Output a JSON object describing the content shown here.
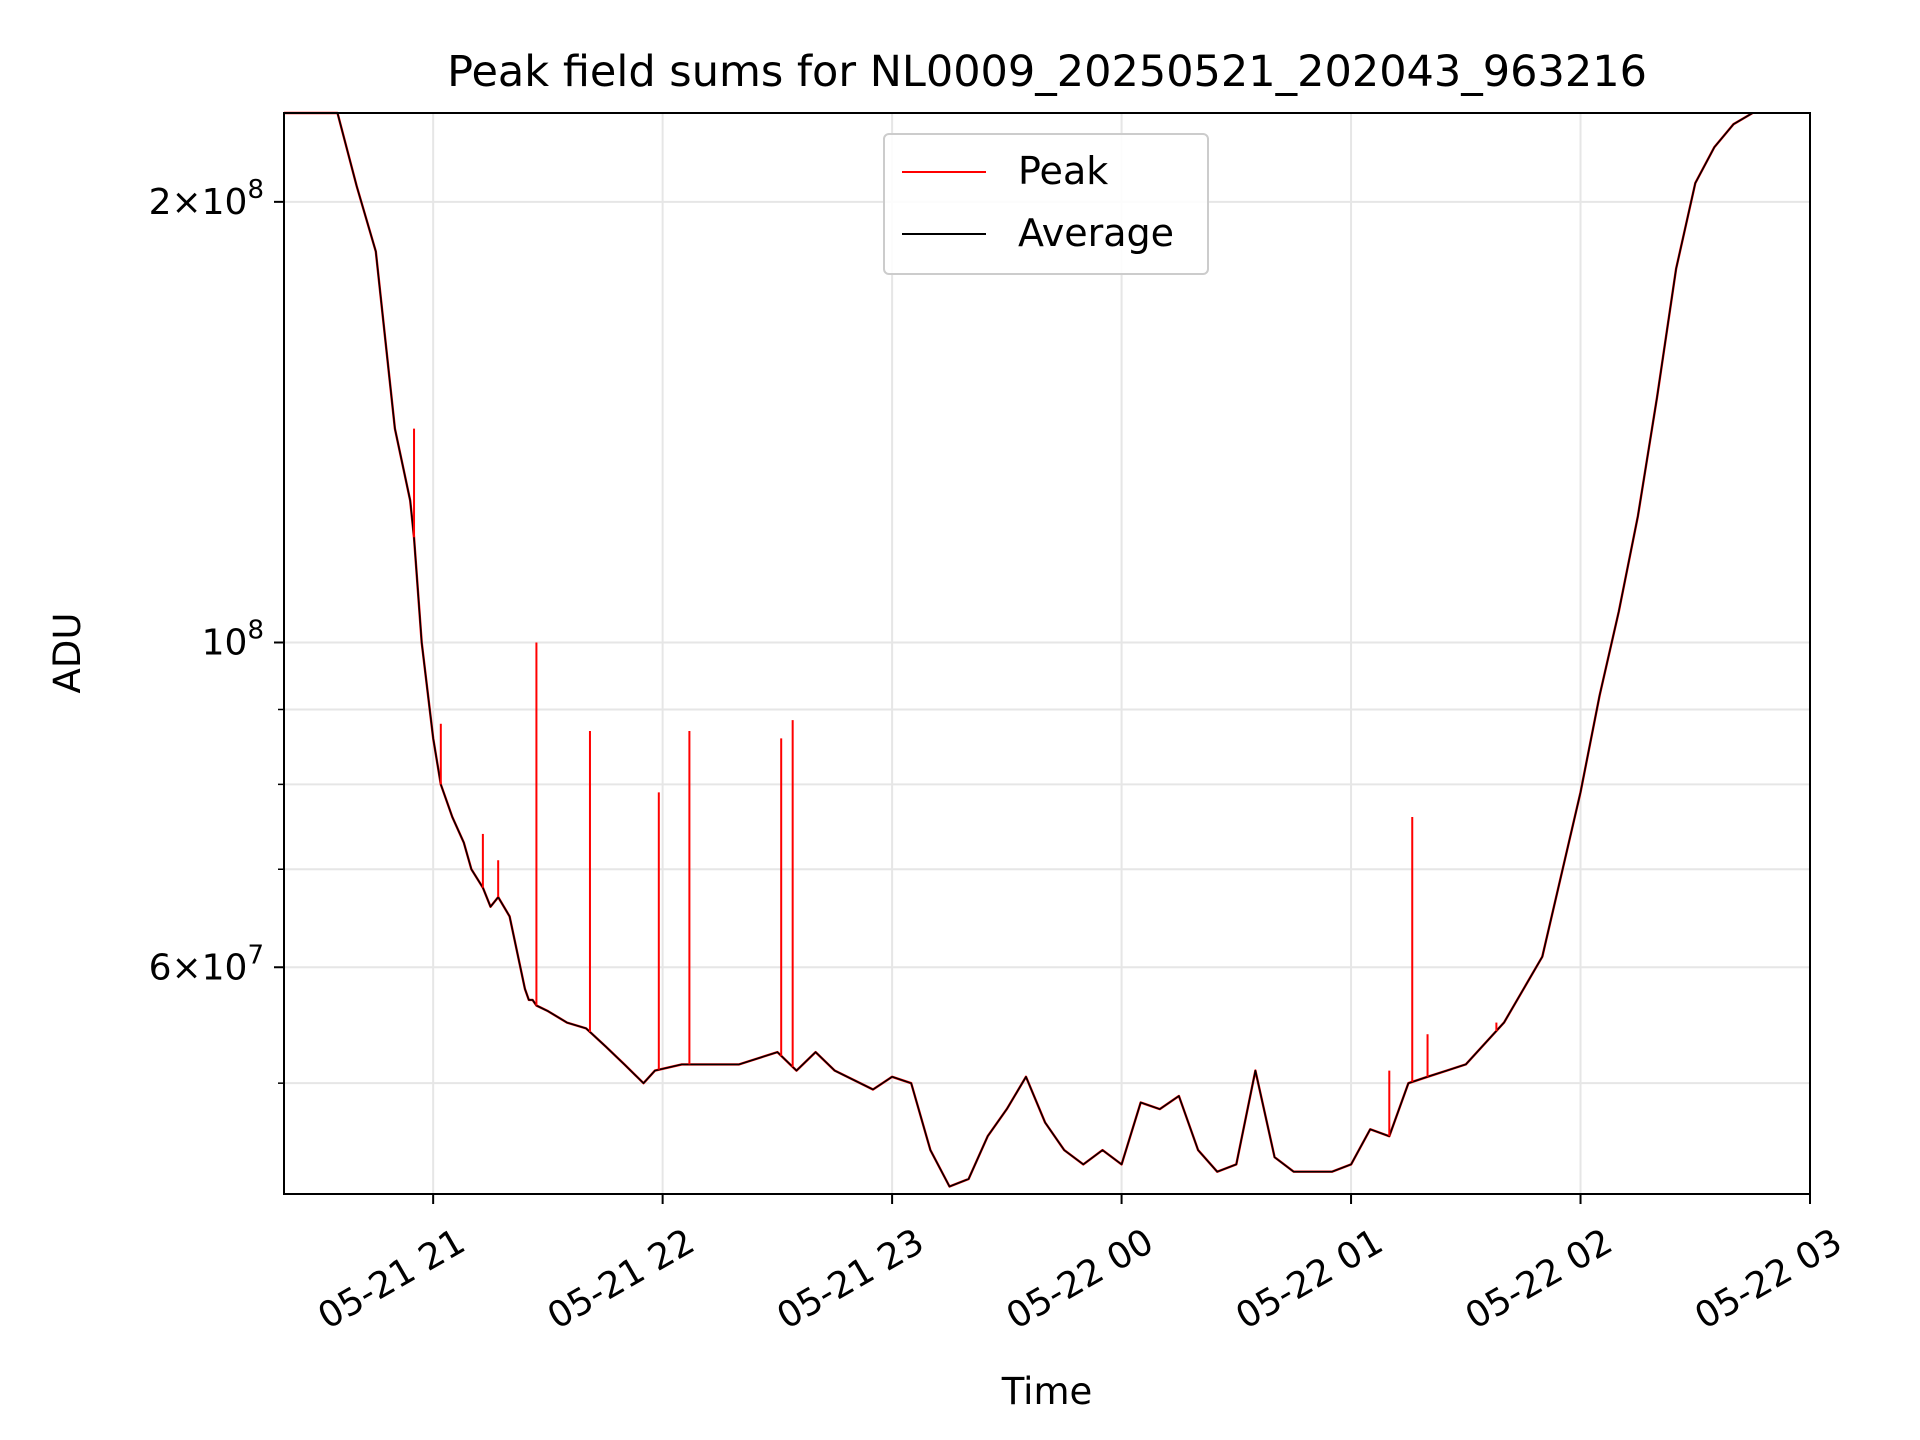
{
  "chart_data": {
    "type": "line",
    "title": "Peak field sums for NL0009_20250521_202043_963216",
    "xlabel": "Time",
    "ylabel": "ADU",
    "x_ticks": [
      "05-21 21",
      "05-21 22",
      "05-21 23",
      "05-22 00",
      "05-22 01",
      "05-22 02",
      "05-22 03"
    ],
    "y_ticks": [
      {
        "value": 200000000,
        "mantissa": "2",
        "exp": "8"
      },
      {
        "value": 100000000,
        "mantissa": "",
        "exp": "8"
      },
      {
        "value": 60000000,
        "mantissa": "6",
        "exp": "7"
      }
    ],
    "y_minor_ticks": [
      50000000,
      70000000,
      80000000,
      90000000
    ],
    "y_scale": "log",
    "xlim": [
      "2025-05-21 20:21",
      "2025-05-22 03:00"
    ],
    "ylim": [
      42000000,
      230000000
    ],
    "grid": true,
    "legend_position": "upper center",
    "series": [
      {
        "name": "Peak",
        "color": "#ff0000",
        "x": [
          "2025-05-21 20:21",
          "2025-05-21 20:35",
          "2025-05-21 20:40",
          "2025-05-21 20:45",
          "2025-05-21 20:50",
          "2025-05-21 20:54",
          "2025-05-21 20:55",
          "2025-05-21 20:57",
          "2025-05-21 21:00",
          "2025-05-21 21:02",
          "2025-05-21 21:05",
          "2025-05-21 21:08",
          "2025-05-21 21:10",
          "2025-05-21 21:13",
          "2025-05-21 21:15",
          "2025-05-21 21:17",
          "2025-05-21 21:20",
          "2025-05-21 21:24",
          "2025-05-21 21:25",
          "2025-05-21 21:26",
          "2025-05-21 21:27",
          "2025-05-21 21:30",
          "2025-05-21 21:35",
          "2025-05-21 21:40",
          "2025-05-21 21:45",
          "2025-05-21 21:50",
          "2025-05-21 21:55",
          "2025-05-21 21:58",
          "2025-05-21 22:05",
          "2025-05-21 22:10",
          "2025-05-21 22:20",
          "2025-05-21 22:30",
          "2025-05-21 22:35",
          "2025-05-21 22:40",
          "2025-05-21 22:45",
          "2025-05-21 22:55",
          "2025-05-21 23:00",
          "2025-05-21 23:05",
          "2025-05-21 23:10",
          "2025-05-21 23:15",
          "2025-05-21 23:20",
          "2025-05-21 23:25",
          "2025-05-21 23:30",
          "2025-05-21 23:35",
          "2025-05-21 23:40",
          "2025-05-21 23:45",
          "2025-05-21 23:50",
          "2025-05-21 23:55",
          "2025-05-22 00:00",
          "2025-05-22 00:05",
          "2025-05-22 00:10",
          "2025-05-22 00:15",
          "2025-05-22 00:20",
          "2025-05-22 00:25",
          "2025-05-22 00:30",
          "2025-05-22 00:35",
          "2025-05-22 00:40",
          "2025-05-22 00:45",
          "2025-05-22 00:50",
          "2025-05-22 00:55",
          "2025-05-22 01:00",
          "2025-05-22 01:05",
          "2025-05-22 01:10",
          "2025-05-22 01:15",
          "2025-05-22 01:20",
          "2025-05-22 01:25",
          "2025-05-22 01:30",
          "2025-05-22 01:40",
          "2025-05-22 01:50",
          "2025-05-22 02:00",
          "2025-05-22 02:05",
          "2025-05-22 02:10",
          "2025-05-22 02:15",
          "2025-05-22 02:20",
          "2025-05-22 02:25",
          "2025-05-22 02:30",
          "2025-05-22 02:35",
          "2025-05-22 02:40",
          "2025-05-22 02:45"
        ],
        "y": [
          230000000,
          230000000,
          205000000,
          185000000,
          140000000,
          125000000,
          118000000,
          100000000,
          86000000,
          80000000,
          76000000,
          73000000,
          70000000,
          68000000,
          66000000,
          67000000,
          65000000,
          58000000,
          57000000,
          57000000,
          56500000,
          56000000,
          55000000,
          54500000,
          53000000,
          51500000,
          50000000,
          51000000,
          51500000,
          51500000,
          51500000,
          52500000,
          51000000,
          52500000,
          51000000,
          49500000,
          50500000,
          50000000,
          45000000,
          42500000,
          43000000,
          46000000,
          48000000,
          50500000,
          47000000,
          45000000,
          44000000,
          45000000,
          44000000,
          48500000,
          48000000,
          49000000,
          45000000,
          43500000,
          44000000,
          51000000,
          44500000,
          43500000,
          43500000,
          43500000,
          44000000,
          46500000,
          46000000,
          50000000,
          50500000,
          51000000,
          51500000,
          55000000,
          61000000,
          79000000,
          92000000,
          105000000,
          122000000,
          147000000,
          180000000,
          206000000,
          218000000,
          226000000,
          230000000
        ]
      },
      {
        "name": "Average",
        "color": "#000000",
        "x": [
          "2025-05-21 20:21",
          "2025-05-21 20:35",
          "2025-05-21 20:40",
          "2025-05-21 20:45",
          "2025-05-21 20:50",
          "2025-05-21 20:54",
          "2025-05-21 20:55",
          "2025-05-21 20:57",
          "2025-05-21 21:00",
          "2025-05-21 21:02",
          "2025-05-21 21:05",
          "2025-05-21 21:08",
          "2025-05-21 21:10",
          "2025-05-21 21:13",
          "2025-05-21 21:15",
          "2025-05-21 21:17",
          "2025-05-21 21:20",
          "2025-05-21 21:24",
          "2025-05-21 21:25",
          "2025-05-21 21:26",
          "2025-05-21 21:27",
          "2025-05-21 21:30",
          "2025-05-21 21:35",
          "2025-05-21 21:40",
          "2025-05-21 21:45",
          "2025-05-21 21:50",
          "2025-05-21 21:55",
          "2025-05-21 21:58",
          "2025-05-21 22:05",
          "2025-05-21 22:10",
          "2025-05-21 22:20",
          "2025-05-21 22:30",
          "2025-05-21 22:35",
          "2025-05-21 22:40",
          "2025-05-21 22:45",
          "2025-05-21 22:55",
          "2025-05-21 23:00",
          "2025-05-21 23:05",
          "2025-05-21 23:10",
          "2025-05-21 23:15",
          "2025-05-21 23:20",
          "2025-05-21 23:25",
          "2025-05-21 23:30",
          "2025-05-21 23:35",
          "2025-05-21 23:40",
          "2025-05-21 23:45",
          "2025-05-21 23:50",
          "2025-05-21 23:55",
          "2025-05-22 00:00",
          "2025-05-22 00:05",
          "2025-05-22 00:10",
          "2025-05-22 00:15",
          "2025-05-22 00:20",
          "2025-05-22 00:25",
          "2025-05-22 00:30",
          "2025-05-22 00:35",
          "2025-05-22 00:40",
          "2025-05-22 00:45",
          "2025-05-22 00:50",
          "2025-05-22 00:55",
          "2025-05-22 01:00",
          "2025-05-22 01:05",
          "2025-05-22 01:10",
          "2025-05-22 01:15",
          "2025-05-22 01:20",
          "2025-05-22 01:25",
          "2025-05-22 01:30",
          "2025-05-22 01:40",
          "2025-05-22 01:50",
          "2025-05-22 02:00",
          "2025-05-22 02:05",
          "2025-05-22 02:10",
          "2025-05-22 02:15",
          "2025-05-22 02:20",
          "2025-05-22 02:25",
          "2025-05-22 02:30",
          "2025-05-22 02:35",
          "2025-05-22 02:40",
          "2025-05-22 02:45"
        ],
        "y": [
          230000000,
          230000000,
          205000000,
          185000000,
          140000000,
          125000000,
          118000000,
          100000000,
          86000000,
          80000000,
          76000000,
          73000000,
          70000000,
          68000000,
          66000000,
          67000000,
          65000000,
          58000000,
          57000000,
          57000000,
          56500000,
          56000000,
          55000000,
          54500000,
          53000000,
          51500000,
          50000000,
          51000000,
          51500000,
          51500000,
          51500000,
          52500000,
          51000000,
          52500000,
          51000000,
          49500000,
          50500000,
          50000000,
          45000000,
          42500000,
          43000000,
          46000000,
          48000000,
          50500000,
          47000000,
          45000000,
          44000000,
          45000000,
          44000000,
          48500000,
          48000000,
          49000000,
          45000000,
          43500000,
          44000000,
          51000000,
          44500000,
          43500000,
          43500000,
          43500000,
          44000000,
          46500000,
          46000000,
          50000000,
          50500000,
          51000000,
          51500000,
          55000000,
          61000000,
          79000000,
          92000000,
          105000000,
          122000000,
          147000000,
          180000000,
          206000000,
          218000000,
          226000000,
          230000000
        ]
      }
    ],
    "peak_spikes": [
      {
        "x": "2025-05-21 20:55",
        "y": 140000000
      },
      {
        "x": "2025-05-21 21:02",
        "y": 88000000
      },
      {
        "x": "2025-05-21 21:13",
        "y": 74000000
      },
      {
        "x": "2025-05-21 21:17",
        "y": 71000000
      },
      {
        "x": "2025-05-21 21:27",
        "y": 100000000
      },
      {
        "x": "2025-05-21 21:41",
        "y": 87000000
      },
      {
        "x": "2025-05-21 21:59",
        "y": 79000000
      },
      {
        "x": "2025-05-21 22:07",
        "y": 87000000
      },
      {
        "x": "2025-05-21 22:31",
        "y": 86000000
      },
      {
        "x": "2025-05-21 22:34",
        "y": 88500000
      },
      {
        "x": "2025-05-22 01:16",
        "y": 76000000
      },
      {
        "x": "2025-05-22 01:20",
        "y": 54000000
      },
      {
        "x": "2025-05-22 01:10",
        "y": 51000000
      },
      {
        "x": "2025-05-22 01:38",
        "y": 55000000
      }
    ]
  }
}
